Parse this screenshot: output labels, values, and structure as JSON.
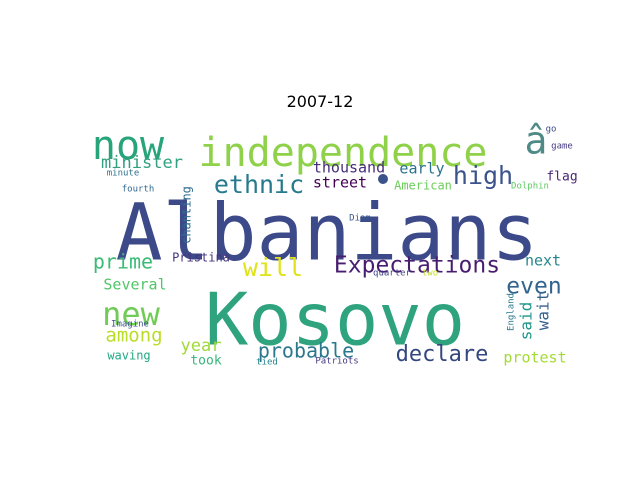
{
  "title": "2007-12",
  "words": [
    {
      "text": "Albanians",
      "color": "#3d4a8a"
    },
    {
      "text": "Kosovo",
      "color": "#2ea37d"
    },
    {
      "text": "independence",
      "color": "#8fd24a"
    },
    {
      "text": "â",
      "color": "#4e8b86"
    },
    {
      "text": "now",
      "color": "#28a47a"
    },
    {
      "text": "new",
      "color": "#70cc56"
    },
    {
      "text": "Expectations",
      "color": "#481d6f"
    },
    {
      "text": "ethnic",
      "color": "#277a8e"
    },
    {
      "text": "high",
      "color": "#3b528b"
    },
    {
      "text": "declare",
      "color": "#34477f"
    },
    {
      "text": "probable",
      "color": "#2a788e"
    },
    {
      "text": "even",
      "color": "#32648e"
    },
    {
      "text": "will",
      "color": "#dfe318"
    },
    {
      "text": "prime",
      "color": "#3bbb75"
    },
    {
      "text": "minister",
      "color": "#31a080"
    },
    {
      "text": "among",
      "color": "#bade28"
    },
    {
      "text": "year",
      "color": "#a0da39"
    },
    {
      "text": "Several",
      "color": "#52c569"
    },
    {
      "text": "early",
      "color": "#2c728e"
    },
    {
      "text": "thousand",
      "color": "#472d7b"
    },
    {
      "text": "next",
      "color": "#25848e"
    },
    {
      "text": "said",
      "color": "#1f968b"
    },
    {
      "text": "wait",
      "color": "#355f8d"
    },
    {
      "text": "protest",
      "color": "#a5db36"
    },
    {
      "text": "took",
      "color": "#35b779"
    },
    {
      "text": "street",
      "color": "#440154"
    },
    {
      "text": "flag",
      "color": "#482878"
    },
    {
      "text": "American",
      "color": "#6ccd5a"
    },
    {
      "text": "Pristina",
      "color": "#46327e"
    },
    {
      "text": "chanting",
      "color": "#2e6e8e"
    },
    {
      "text": "waving",
      "color": "#22a884"
    },
    {
      "text": "Imagine",
      "color": "#3b528b"
    },
    {
      "text": "minute",
      "color": "#2c728e"
    },
    {
      "text": "fourth",
      "color": "#31688e"
    },
    {
      "text": "Diam",
      "color": "#39568c"
    },
    {
      "text": "quarter",
      "color": "#414487"
    },
    {
      "text": "two",
      "color": "#c2df23"
    },
    {
      "text": "England",
      "color": "#2a788e"
    },
    {
      "text": "Dolphin",
      "color": "#5ec962"
    },
    {
      "text": "go",
      "color": "#3e4a89"
    },
    {
      "text": "game",
      "color": "#443983"
    },
    {
      "text": "tied",
      "color": "#25848e"
    },
    {
      "text": "Patriots",
      "color": "#443983"
    }
  ]
}
